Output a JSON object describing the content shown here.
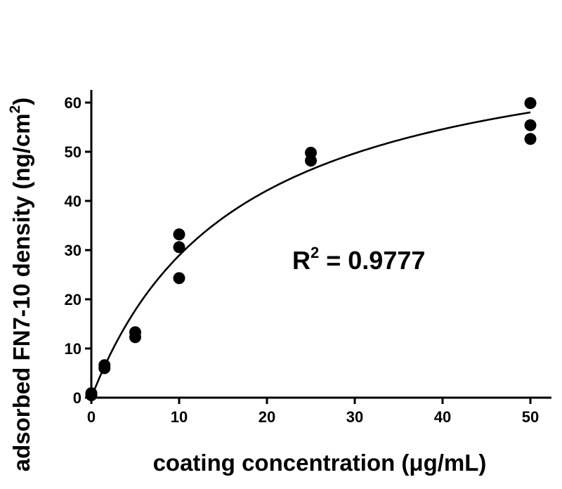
{
  "chart_data": {
    "type": "scatter",
    "xlabel": "coating concentration (μg/mL)",
    "ylabel_main": "adsorbed FN7-10 density (ng/cm",
    "ylabel_sup": "2",
    "ylabel_close": ")",
    "xlim": [
      0,
      52
    ],
    "ylim": [
      0,
      62
    ],
    "xticks": [
      0,
      10,
      20,
      30,
      40,
      50
    ],
    "yticks": [
      0,
      10,
      20,
      30,
      40,
      50,
      60
    ],
    "points": [
      {
        "x": 0,
        "y": 0.5
      },
      {
        "x": 0,
        "y": 0.9
      },
      {
        "x": 1.5,
        "y": 6.0
      },
      {
        "x": 1.5,
        "y": 6.6
      },
      {
        "x": 5,
        "y": 12.3
      },
      {
        "x": 5,
        "y": 13.3
      },
      {
        "x": 10,
        "y": 24.3
      },
      {
        "x": 10,
        "y": 30.6
      },
      {
        "x": 10,
        "y": 33.2
      },
      {
        "x": 25,
        "y": 48.2
      },
      {
        "x": 25,
        "y": 49.8
      },
      {
        "x": 50,
        "y": 52.6
      },
      {
        "x": 50,
        "y": 55.4
      },
      {
        "x": 50,
        "y": 59.9
      }
    ],
    "fit": {
      "model": "one-site binding",
      "bmax": 77.5,
      "kd": 16.8
    },
    "annotation": {
      "prefix": "R",
      "sup": "2",
      "suffix": " = 0.9777"
    },
    "grid": false,
    "color": "#000000"
  }
}
